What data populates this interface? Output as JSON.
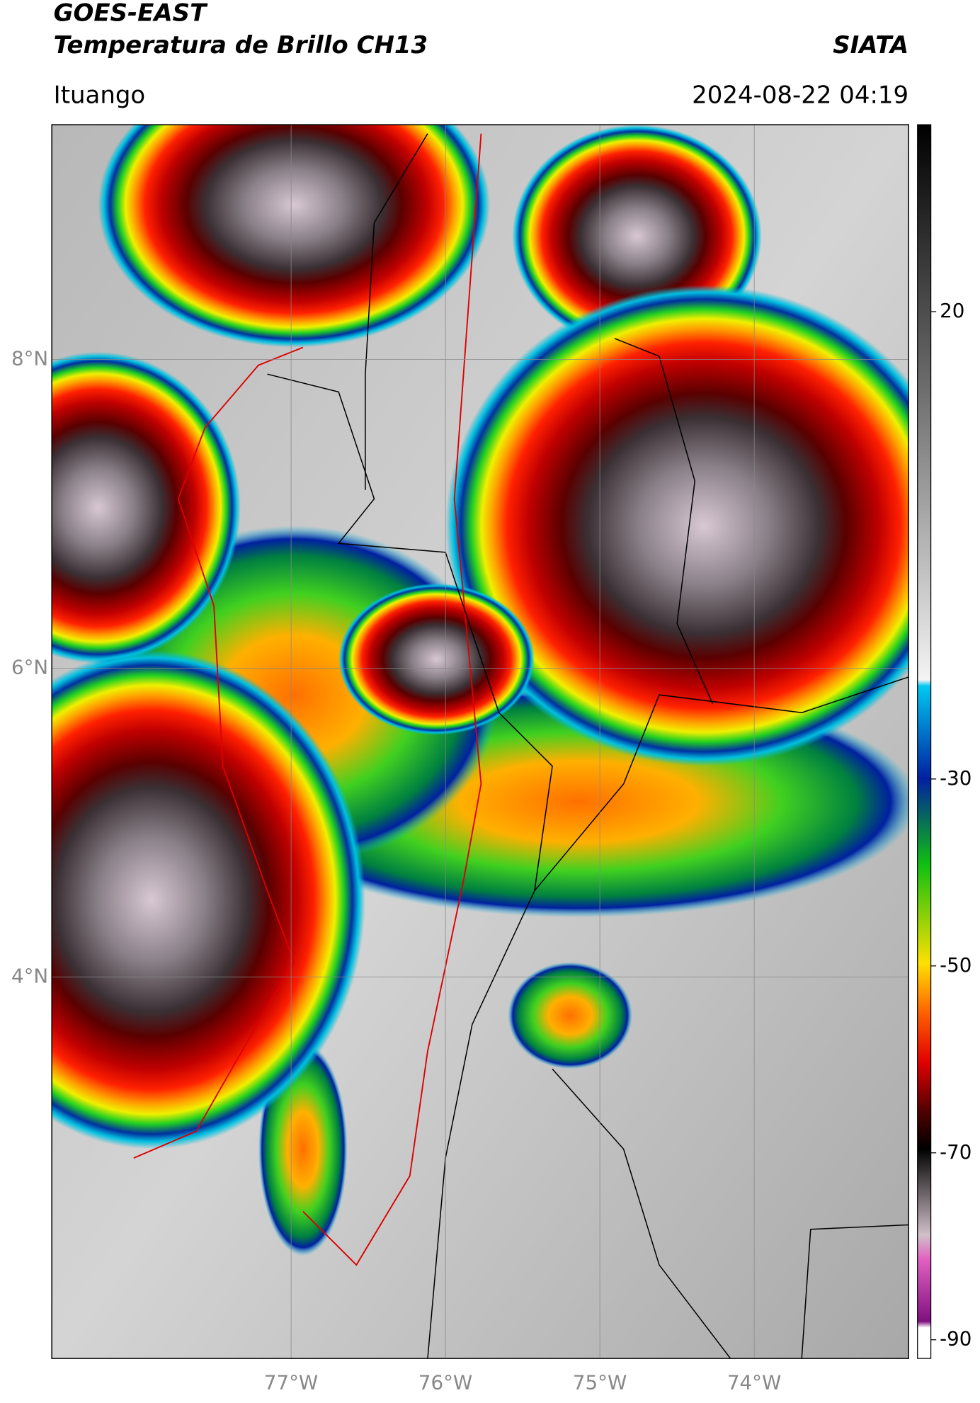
{
  "header": {
    "title": "GOES-EAST",
    "subtitle": "Temperatura de Brillo CH13",
    "source": "SIATA",
    "location": "Ituango",
    "datetime": "2024-08-22 04:19"
  },
  "map": {
    "lonlim": [
      -78.55,
      -73
    ],
    "latlim": [
      1.53,
      9.52
    ],
    "lonticks": [
      {
        "value": -77,
        "label": "77°W"
      },
      {
        "value": -76,
        "label": "76°W"
      },
      {
        "value": -75,
        "label": "75°W"
      },
      {
        "value": -74,
        "label": "74°W"
      }
    ],
    "latticks": [
      {
        "value": 8,
        "label": "8°N"
      },
      {
        "value": 6,
        "label": "6°N"
      },
      {
        "value": 4,
        "label": "4°N"
      }
    ],
    "grid": true
  },
  "colorbar": {
    "range": [
      -92,
      40
    ],
    "ticks": [
      20,
      -30,
      -50,
      -70,
      -90
    ]
  }
}
